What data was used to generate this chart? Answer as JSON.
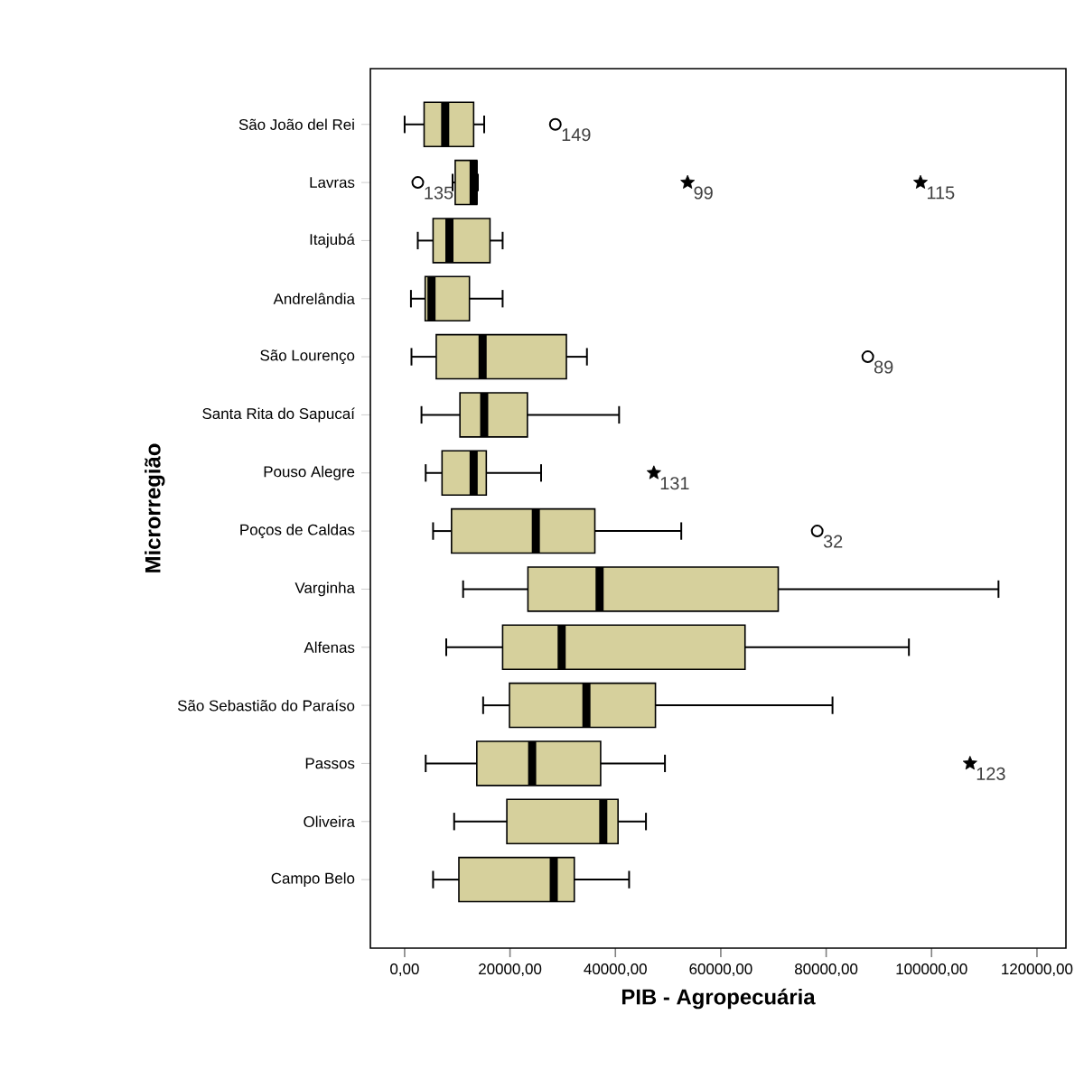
{
  "chart_data": {
    "type": "box",
    "orientation": "horizontal",
    "xlabel": "PIB - Agropecuária",
    "ylabel": "Microrregião",
    "categories": [
      "São João del Rei",
      "Lavras",
      "Itajubá",
      "Andrelândia",
      "São Lourenço",
      "Santa Rita do Sapucaí",
      "Pouso Alegre",
      "Poços de Caldas",
      "Varginha",
      "Alfenas",
      "São Sebastião do Paraíso",
      "Passos",
      "Oliveira",
      "Campo Belo"
    ],
    "xlim": [
      -6500,
      125500
    ],
    "xticks": [
      {
        "value": 0,
        "label": "0,00"
      },
      {
        "value": 20000,
        "label": "20000,00"
      },
      {
        "value": 40000,
        "label": "40000,00"
      },
      {
        "value": 60000,
        "label": "60000,00"
      },
      {
        "value": 80000,
        "label": "80000,00"
      },
      {
        "value": 100000,
        "label": "100000,00"
      },
      {
        "value": 120000,
        "label": "120000,00"
      }
    ],
    "grid": false,
    "series": [
      {
        "color": "#d6d09c",
        "boxes": [
          {
            "low": 0,
            "q1": 3700,
            "median": 7700,
            "q3": 13100,
            "high": 15100
          },
          {
            "low": 9100,
            "q1": 9600,
            "median": 13100,
            "q3": 13700,
            "high": 13900
          },
          {
            "low": 2500,
            "q1": 5400,
            "median": 8500,
            "q3": 16200,
            "high": 18600
          },
          {
            "low": 1200,
            "q1": 3900,
            "median": 5100,
            "q3": 12300,
            "high": 18600
          },
          {
            "low": 1300,
            "q1": 6000,
            "median": 14800,
            "q3": 30700,
            "high": 34600
          },
          {
            "low": 3200,
            "q1": 10500,
            "median": 15100,
            "q3": 23300,
            "high": 40700
          },
          {
            "low": 4000,
            "q1": 7100,
            "median": 13100,
            "q3": 15500,
            "high": 25900
          },
          {
            "low": 5400,
            "q1": 8900,
            "median": 24900,
            "q3": 36100,
            "high": 52500
          },
          {
            "low": 11100,
            "q1": 23400,
            "median": 37000,
            "q3": 70900,
            "high": 112700
          },
          {
            "low": 7900,
            "q1": 18600,
            "median": 29800,
            "q3": 64600,
            "high": 95700
          },
          {
            "low": 14900,
            "q1": 19900,
            "median": 34500,
            "q3": 47600,
            "high": 81200
          },
          {
            "low": 4000,
            "q1": 13700,
            "median": 24200,
            "q3": 37200,
            "high": 49400
          },
          {
            "low": 9400,
            "q1": 19400,
            "median": 37700,
            "q3": 40500,
            "high": 45800
          },
          {
            "low": 5400,
            "q1": 10300,
            "median": 28300,
            "q3": 32200,
            "high": 42600
          }
        ]
      },
      {
        "type": "scatter",
        "marker": "circle",
        "color": "#000000",
        "x": [
          "São João del Rei",
          "Lavras",
          "São Lourenço",
          "Poços de Caldas"
        ],
        "values": [
          28600,
          2500,
          87900,
          78300
        ]
      },
      {
        "type": "scatter",
        "marker": "star",
        "color": "#000000",
        "x": [
          "Lavras",
          "Lavras",
          "Pouso Alegre",
          "Passos"
        ],
        "values": [
          53700,
          97900,
          47300,
          107300
        ]
      }
    ],
    "annotations": [
      {
        "text": "149",
        "x": 28600,
        "y": "São João del Rei"
      },
      {
        "text": "135",
        "x": 2500,
        "y": "Lavras"
      },
      {
        "text": "99",
        "x": 53700,
        "y": "Lavras"
      },
      {
        "text": "115",
        "x": 97900,
        "y": "Lavras"
      },
      {
        "text": "89",
        "x": 87900,
        "y": "São Lourenço"
      },
      {
        "text": "131",
        "x": 47300,
        "y": "Pouso Alegre"
      },
      {
        "text": "32",
        "x": 78300,
        "y": "Poços de Caldas"
      },
      {
        "text": "123",
        "x": 107300,
        "y": "Passos"
      }
    ]
  }
}
